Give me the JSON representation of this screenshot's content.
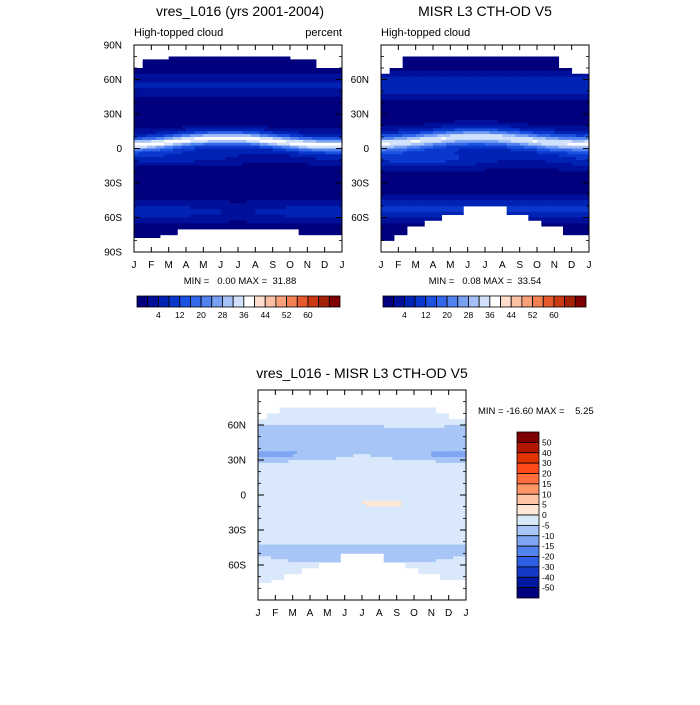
{
  "panels": [
    {
      "title": "vres_L016 (yrs 2001-2004)",
      "left_label": "High-topped cloud",
      "right_label": "percent",
      "stats": "MIN =   0.00 MAX =  31.88"
    },
    {
      "title": "MISR L3 CTH-OD V5",
      "left_label": "High-topped cloud",
      "right_label": "",
      "stats": "MIN =   0.08 MAX =  33.54"
    },
    {
      "title": "vres_L016 - MISR L3 CTH-OD V5",
      "left_label": "",
      "right_label": "",
      "stats": "MIN = -16.60 MAX =    5.25"
    }
  ],
  "chart_data": [
    {
      "type": "heatmap",
      "title": "vres_L016 (yrs 2001-2004)",
      "x_ticks": [
        "J",
        "F",
        "M",
        "A",
        "M",
        "J",
        "J",
        "A",
        "S",
        "O",
        "N",
        "D",
        "J"
      ],
      "y_ticks": [
        "90N",
        "60N",
        "30N",
        "0",
        "30S",
        "60S",
        "90S"
      ],
      "y_tick_values": [
        90,
        60,
        30,
        0,
        -30,
        -60,
        -90
      ],
      "ylim": [
        -90,
        90
      ],
      "xlim": [
        0,
        12
      ],
      "data_lat_range": [
        -80,
        80
      ],
      "min": 0.0,
      "max": 31.88,
      "colorbar": {
        "labels": [
          "4",
          "12",
          "20",
          "28",
          "36",
          "44",
          "52",
          "60"
        ],
        "levels": [
          4,
          8,
          12,
          16,
          20,
          24,
          28,
          32,
          36,
          40,
          44,
          48,
          52,
          56,
          60
        ],
        "colors": [
          "#00007f",
          "#00109a",
          "#0022b5",
          "#0a38cc",
          "#1b52e0",
          "#3468ea",
          "#5183f0",
          "#78a1f4",
          "#a5c1f7",
          "#d2e1fb",
          "#ffffff",
          "#ffddcc",
          "#fbbfa3",
          "#f7a07a",
          "#f28052",
          "#e65a2d",
          "#cc3a14",
          "#a52207",
          "#7f0000"
        ]
      }
    },
    {
      "type": "heatmap",
      "title": "MISR L3 CTH-OD V5",
      "x_ticks": [
        "J",
        "F",
        "M",
        "A",
        "M",
        "J",
        "J",
        "A",
        "S",
        "O",
        "N",
        "D",
        "J"
      ],
      "y_ticks": [
        "60N",
        "30N",
        "0",
        "30S",
        "60S"
      ],
      "y_tick_values": [
        60,
        30,
        0,
        -30,
        -60
      ],
      "ylim": [
        -90,
        90
      ],
      "xlim": [
        0,
        12
      ],
      "data_lat_range": [
        -80,
        80
      ],
      "min": 0.08,
      "max": 33.54,
      "colorbar": {
        "labels": [
          "4",
          "12",
          "20",
          "28",
          "36",
          "44",
          "52",
          "60"
        ],
        "levels": [
          4,
          8,
          12,
          16,
          20,
          24,
          28,
          32,
          36,
          40,
          44,
          48,
          52,
          56,
          60
        ],
        "colors": [
          "#00007f",
          "#00109a",
          "#0022b5",
          "#0a38cc",
          "#1b52e0",
          "#3468ea",
          "#5183f0",
          "#78a1f4",
          "#a5c1f7",
          "#d2e1fb",
          "#ffffff",
          "#ffddcc",
          "#fbbfa3",
          "#f7a07a",
          "#f28052",
          "#e65a2d",
          "#cc3a14",
          "#a52207",
          "#7f0000"
        ]
      }
    },
    {
      "type": "heatmap",
      "title": "vres_L016 - MISR L3 CTH-OD V5",
      "x_ticks": [
        "J",
        "F",
        "M",
        "A",
        "M",
        "J",
        "J",
        "A",
        "S",
        "O",
        "N",
        "D",
        "J"
      ],
      "y_ticks": [
        "60N",
        "30N",
        "0",
        "30S",
        "60S"
      ],
      "y_tick_values": [
        60,
        30,
        0,
        -30,
        -60
      ],
      "ylim": [
        -90,
        90
      ],
      "xlim": [
        0,
        12
      ],
      "min": -16.6,
      "max": 5.25,
      "colorbar": {
        "orientation": "vertical",
        "labels": [
          "50",
          "40",
          "30",
          "20",
          "15",
          "10",
          "5",
          "0",
          "-5",
          "-10",
          "-15",
          "-20",
          "-30",
          "-40",
          "-50"
        ],
        "colors": [
          "#7f0000",
          "#b31700",
          "#e23400",
          "#ff4a1a",
          "#ff6f3d",
          "#ff9766",
          "#ffc4a4",
          "#ffe7d6",
          "#d9e8fb",
          "#a7c5f6",
          "#7ea6f2",
          "#5183ee",
          "#2d5ee3",
          "#1539c4",
          "#0018a0",
          "#00007f"
        ]
      }
    }
  ]
}
